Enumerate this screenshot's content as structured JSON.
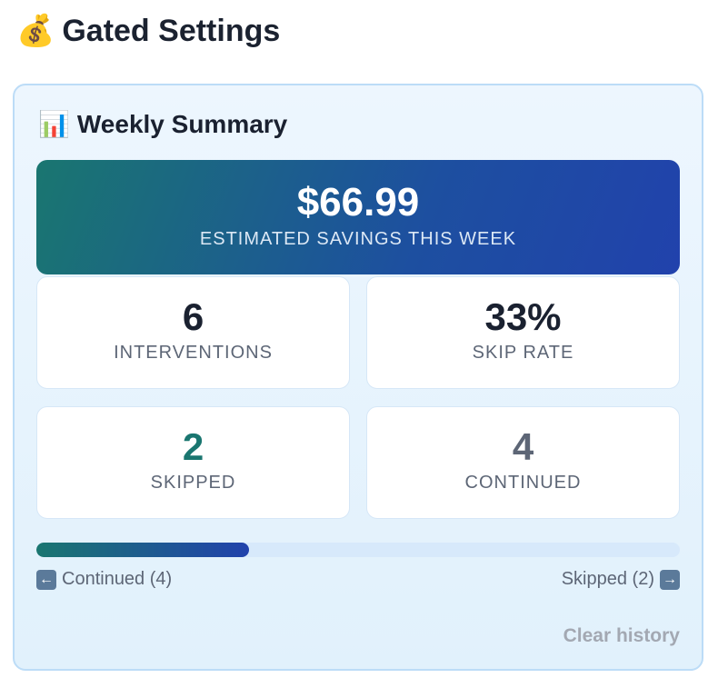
{
  "header": {
    "icon": "money-bag-icon",
    "emoji": "💰",
    "title": "Gated Settings"
  },
  "summary": {
    "icon": "bar-chart-icon",
    "emoji": "📊",
    "title": "Weekly Summary",
    "savings": {
      "value": "$66.99",
      "label": "ESTIMATED SAVINGS THIS WEEK"
    },
    "stats": [
      {
        "value": "6",
        "label": "INTERVENTIONS",
        "color": "#1a2130"
      },
      {
        "value": "33%",
        "label": "SKIP RATE",
        "color": "#1a2130"
      },
      {
        "value": "2",
        "label": "SKIPPED",
        "color": "#1a7670"
      },
      {
        "value": "4",
        "label": "CONTINUED",
        "color": "#5d6676"
      }
    ],
    "progress": {
      "skipped_fraction": 0.33
    },
    "legend": {
      "left": "Continued (4)",
      "right": "Skipped (2)"
    },
    "clear_label": "Clear history"
  }
}
